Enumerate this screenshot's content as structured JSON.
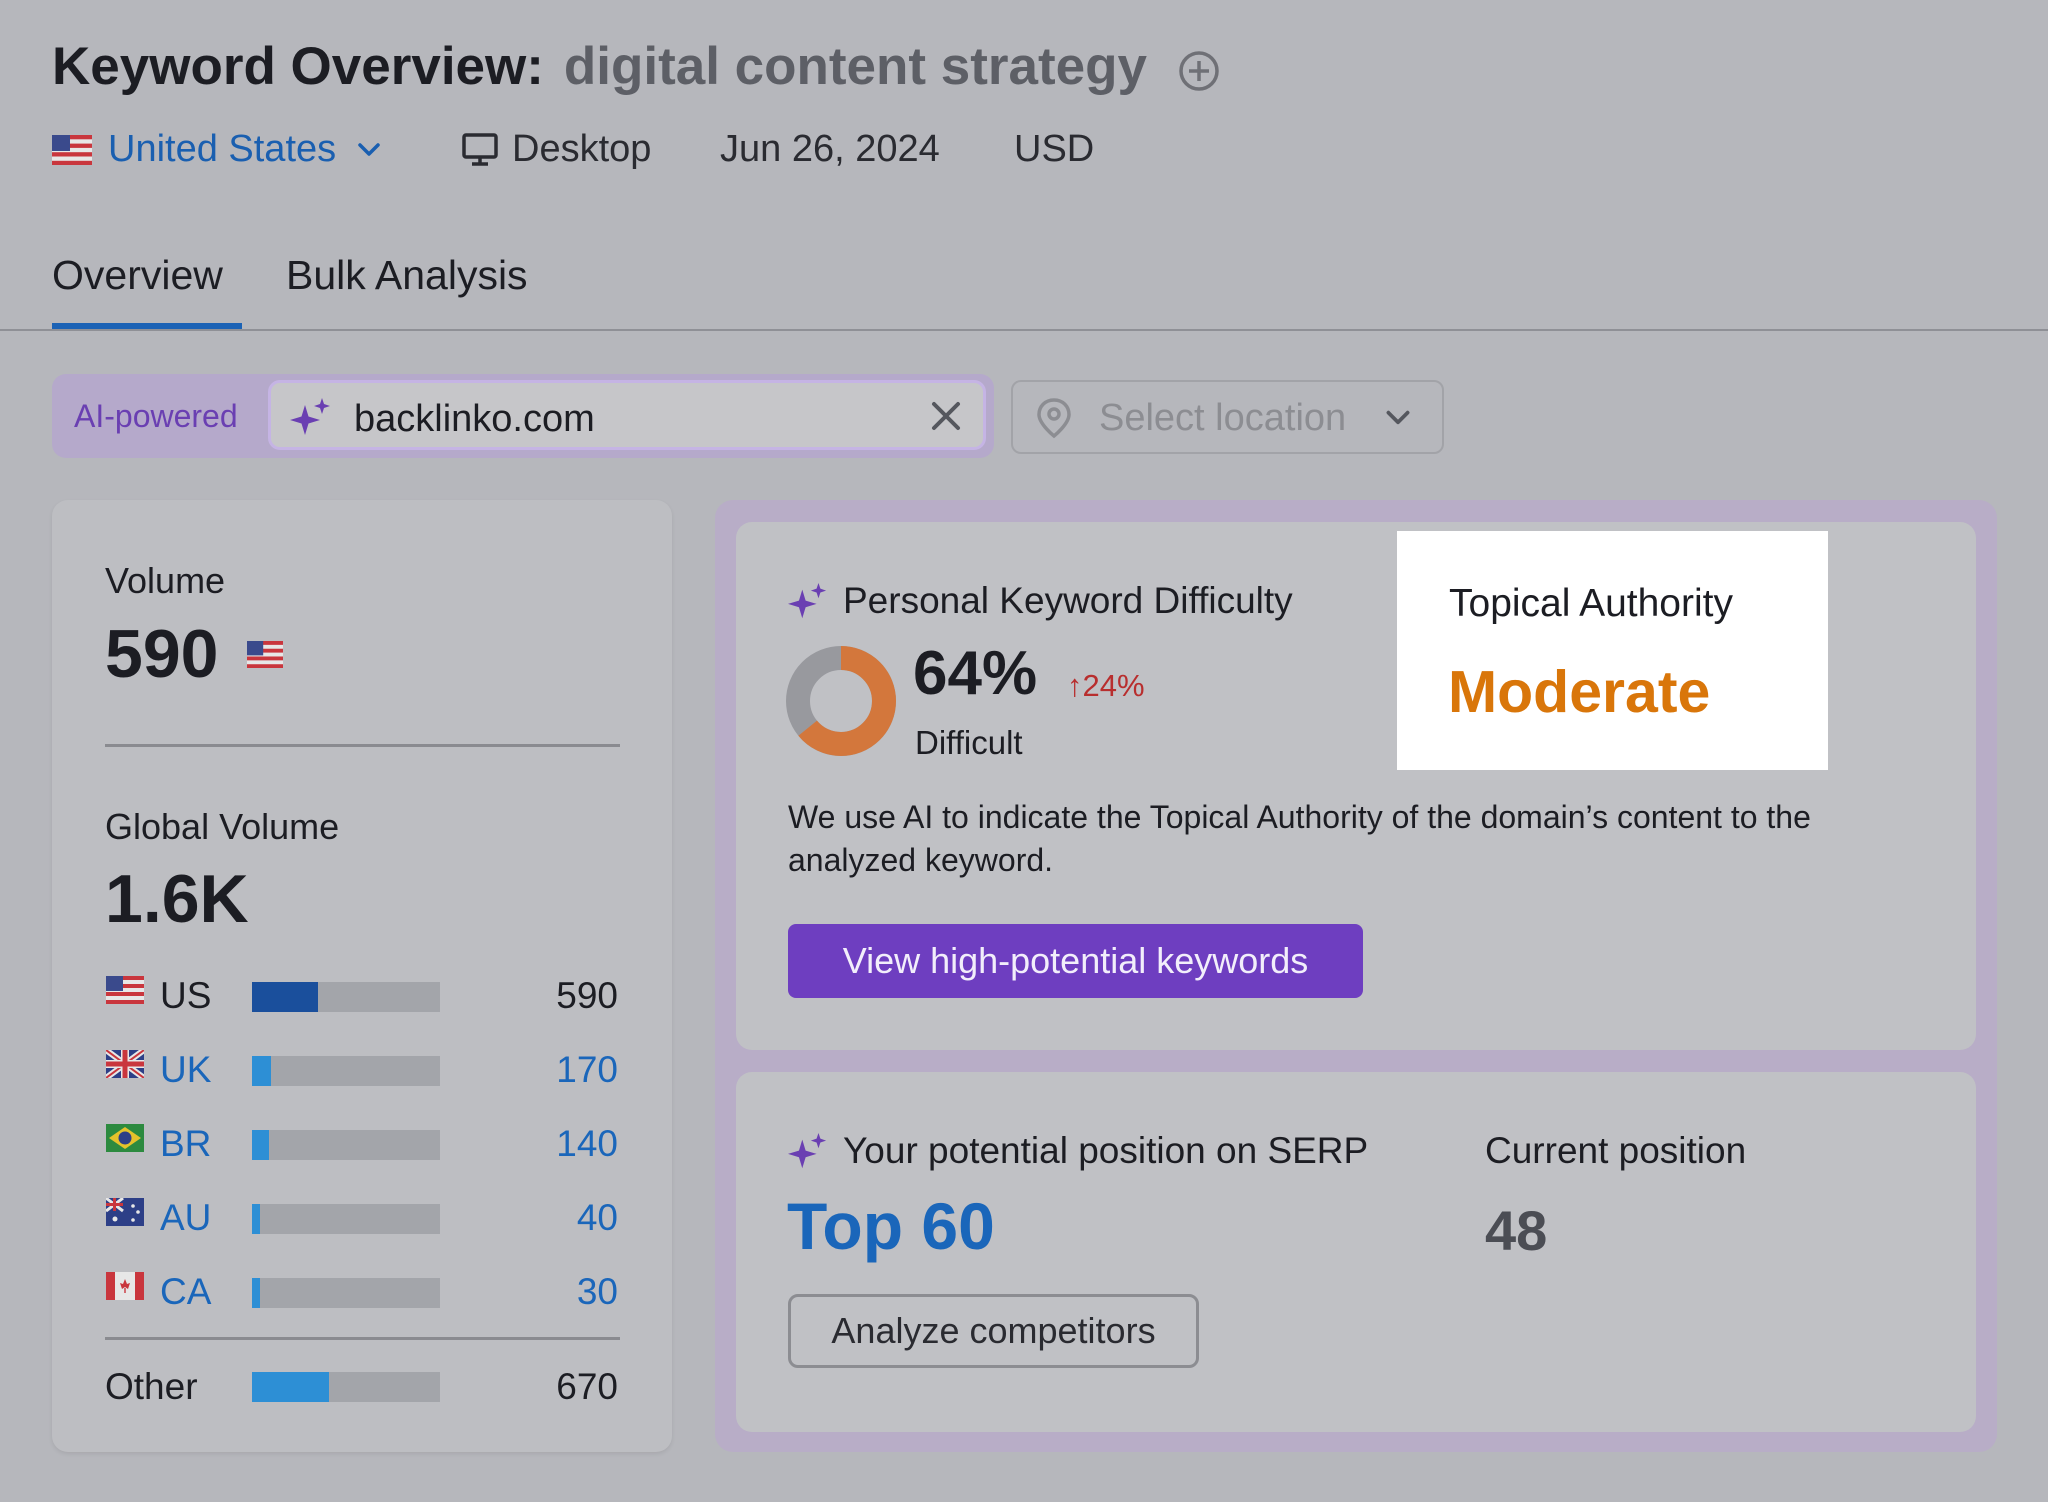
{
  "header": {
    "title": "Keyword Overview:",
    "keyword": "digital content strategy",
    "country": "United States",
    "device": "Desktop",
    "date": "Jun 26, 2024",
    "currency": "USD"
  },
  "tabs": [
    {
      "label": "Overview",
      "active": true
    },
    {
      "label": "Bulk Analysis",
      "active": false
    }
  ],
  "search": {
    "ai_label": "AI-powered",
    "domain": "backlinko.com",
    "location_placeholder": "Select location"
  },
  "volume": {
    "label": "Volume",
    "value": "590",
    "global_label": "Global Volume",
    "global_value": "1.6K",
    "rows": [
      {
        "code": "US",
        "value": "590",
        "share": 0.35,
        "flag": "us-flag-icon",
        "link": false
      },
      {
        "code": "UK",
        "value": "170",
        "share": 0.1,
        "flag": "uk-flag-icon",
        "link": true
      },
      {
        "code": "BR",
        "value": "140",
        "share": 0.09,
        "flag": "br-flag-icon",
        "link": true
      },
      {
        "code": "AU",
        "value": "40",
        "share": 0.04,
        "flag": "au-flag-icon",
        "link": true
      },
      {
        "code": "CA",
        "value": "30",
        "share": 0.04,
        "flag": "ca-flag-icon",
        "link": true
      }
    ],
    "other": {
      "label": "Other",
      "value": "670",
      "share": 0.41
    }
  },
  "pkd": {
    "title": "Personal Keyword Difficulty",
    "value": "64%",
    "percent": 64,
    "delta": "24%",
    "level": "Difficult",
    "description": "We use AI to indicate the Topical Authority of the domain’s content to the analyzed keyword.",
    "button": "View high-potential keywords"
  },
  "topical_authority": {
    "title": "Topical Authority",
    "value": "Moderate"
  },
  "serp": {
    "title": "Your potential position on SERP",
    "value": "Top 60",
    "current_label": "Current position",
    "current_value": "48",
    "button": "Analyze competitors"
  },
  "colors": {
    "primary": "#6e3ec0",
    "link": "#1a66ba",
    "authority": "#d9760a",
    "delta": "#b82e2e",
    "difficulty_ring": "#d3773c",
    "bar_us": "#1a4f9c",
    "bar_link": "#2d8fd5"
  }
}
